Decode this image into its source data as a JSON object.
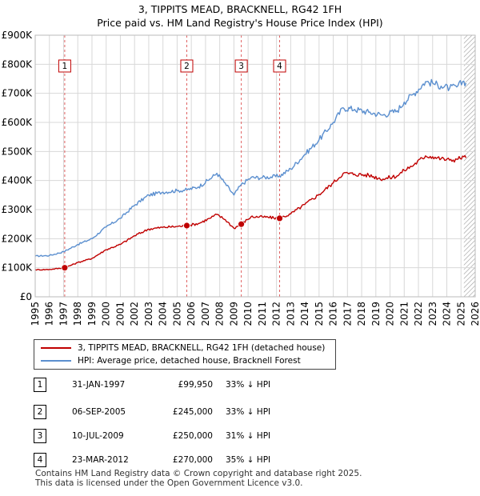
{
  "title_line1": "3, TIPPITS MEAD, BRACKNELL, RG42 1FH",
  "title_line2": "Price paid vs. HM Land Registry's House Price Index (HPI)",
  "chart_data": {
    "type": "line",
    "x_axis": {
      "min": 1995,
      "max": 2026,
      "ticks": [
        1995,
        1996,
        1997,
        1998,
        1999,
        2000,
        2001,
        2002,
        2003,
        2004,
        2005,
        2006,
        2007,
        2008,
        2009,
        2010,
        2011,
        2012,
        2013,
        2014,
        2015,
        2016,
        2017,
        2018,
        2019,
        2020,
        2021,
        2022,
        2023,
        2024,
        2025,
        2026
      ]
    },
    "y_axis": {
      "min": 0,
      "max": 900000,
      "ticks": [
        {
          "value": 0,
          "label": "£0"
        },
        {
          "value": 100000,
          "label": "£100K"
        },
        {
          "value": 200000,
          "label": "£200K"
        },
        {
          "value": 300000,
          "label": "£300K"
        },
        {
          "value": 400000,
          "label": "£400K"
        },
        {
          "value": 500000,
          "label": "£500K"
        },
        {
          "value": 600000,
          "label": "£600K"
        },
        {
          "value": 700000,
          "label": "£700K"
        },
        {
          "value": 800000,
          "label": "£800K"
        },
        {
          "value": 900000,
          "label": "£900K"
        }
      ]
    },
    "grid": true,
    "forecast_hatch_from": 2025.2,
    "series": [
      {
        "name": "hpi",
        "color": "#5b8fcf",
        "points": [
          [
            1995.0,
            140000
          ],
          [
            1996.0,
            142000
          ],
          [
            1997.0,
            155000
          ],
          [
            1998.0,
            180000
          ],
          [
            1999.0,
            200000
          ],
          [
            2000.0,
            240000
          ],
          [
            2001.0,
            270000
          ],
          [
            2002.0,
            315000
          ],
          [
            2003.0,
            350000
          ],
          [
            2004.0,
            360000
          ],
          [
            2005.0,
            365000
          ],
          [
            2005.7,
            368000
          ],
          [
            2006.5,
            378000
          ],
          [
            2007.3,
            405000
          ],
          [
            2007.8,
            425000
          ],
          [
            2008.3,
            395000
          ],
          [
            2009.0,
            350000
          ],
          [
            2009.5,
            385000
          ],
          [
            2010.2,
            410000
          ],
          [
            2011.0,
            410000
          ],
          [
            2012.2,
            415000
          ],
          [
            2013.0,
            440000
          ],
          [
            2014.0,
            490000
          ],
          [
            2015.0,
            540000
          ],
          [
            2016.0,
            600000
          ],
          [
            2016.7,
            650000
          ],
          [
            2017.5,
            645000
          ],
          [
            2018.5,
            635000
          ],
          [
            2019.5,
            625000
          ],
          [
            2020.5,
            640000
          ],
          [
            2021.0,
            670000
          ],
          [
            2021.7,
            700000
          ],
          [
            2022.5,
            740000
          ],
          [
            2023.0,
            735000
          ],
          [
            2023.6,
            725000
          ],
          [
            2024.2,
            718000
          ],
          [
            2024.7,
            722000
          ],
          [
            2025.2,
            742000
          ],
          [
            2025.35,
            735000
          ]
        ]
      },
      {
        "name": "property",
        "color": "#c00000",
        "points": [
          [
            1995.0,
            93000
          ],
          [
            1996.0,
            94000
          ],
          [
            1997.08,
            99950
          ],
          [
            1998.0,
            118000
          ],
          [
            1999.0,
            132000
          ],
          [
            2000.0,
            162000
          ],
          [
            2001.0,
            180000
          ],
          [
            2002.0,
            210000
          ],
          [
            2003.0,
            233000
          ],
          [
            2004.0,
            239000
          ],
          [
            2005.0,
            242000
          ],
          [
            2005.68,
            245000
          ],
          [
            2006.5,
            252000
          ],
          [
            2007.3,
            270000
          ],
          [
            2007.8,
            283000
          ],
          [
            2008.4,
            265000
          ],
          [
            2009.0,
            236000
          ],
          [
            2009.52,
            250000
          ],
          [
            2010.2,
            275000
          ],
          [
            2011.0,
            275000
          ],
          [
            2012.22,
            270000
          ],
          [
            2013.0,
            285000
          ],
          [
            2014.0,
            318000
          ],
          [
            2015.0,
            352000
          ],
          [
            2016.0,
            392000
          ],
          [
            2016.7,
            425000
          ],
          [
            2017.5,
            422000
          ],
          [
            2018.5,
            418000
          ],
          [
            2019.5,
            405000
          ],
          [
            2020.5,
            416000
          ],
          [
            2021.0,
            435000
          ],
          [
            2021.7,
            455000
          ],
          [
            2022.5,
            485000
          ],
          [
            2023.0,
            482000
          ],
          [
            2023.6,
            475000
          ],
          [
            2024.2,
            470000
          ],
          [
            2024.7,
            473000
          ],
          [
            2025.2,
            482000
          ],
          [
            2025.35,
            478000
          ]
        ]
      }
    ],
    "sale_markers": [
      {
        "num": "1",
        "x": 1997.08,
        "y": 99950
      },
      {
        "num": "2",
        "x": 2005.68,
        "y": 245000
      },
      {
        "num": "3",
        "x": 2009.52,
        "y": 250000
      },
      {
        "num": "4",
        "x": 2012.22,
        "y": 270000
      }
    ]
  },
  "legend": {
    "property_label": "3, TIPPITS MEAD, BRACKNELL, RG42 1FH (detached house)",
    "property_color": "#c00000",
    "hpi_label": "HPI: Average price, detached house, Bracknell Forest",
    "hpi_color": "#5b8fcf"
  },
  "sales": [
    {
      "num": "1",
      "date": "31-JAN-1997",
      "price": "£99,950",
      "hpi": "33% ↓ HPI"
    },
    {
      "num": "2",
      "date": "06-SEP-2005",
      "price": "£245,000",
      "hpi": "33% ↓ HPI"
    },
    {
      "num": "3",
      "date": "10-JUL-2009",
      "price": "£250,000",
      "hpi": "31% ↓ HPI"
    },
    {
      "num": "4",
      "date": "23-MAR-2012",
      "price": "£270,000",
      "hpi": "35% ↓ HPI"
    }
  ],
  "footer_line1": "Contains HM Land Registry data © Crown copyright and database right 2025.",
  "footer_line2": "This data is licensed under the Open Government Licence v3.0."
}
